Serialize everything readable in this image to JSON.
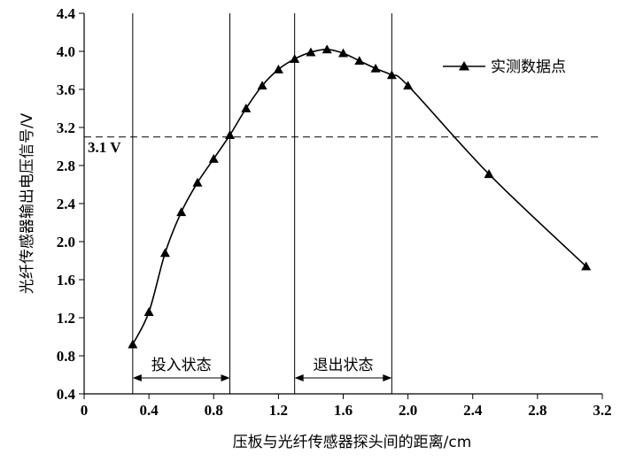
{
  "chart_data": {
    "type": "line",
    "title": "",
    "xlabel": "压板与光纤传感器探头间的距离/cm",
    "ylabel": "光纤传感器输出电压信号/V",
    "xlim": [
      0,
      3.2
    ],
    "ylim": [
      0.4,
      4.4
    ],
    "xticks": [
      "0",
      "0.4",
      "0.8",
      "1.2",
      "1.6",
      "2.0",
      "2.4",
      "2.8",
      "3.2"
    ],
    "yticks": [
      "0.4",
      "0.8",
      "1.2",
      "1.6",
      "2.0",
      "2.4",
      "2.8",
      "3.2",
      "3.6",
      "4.0",
      "4.4"
    ],
    "legend": {
      "label": "实测数据点",
      "position": "top-right",
      "marker": "triangle"
    },
    "grid": false,
    "series": [
      {
        "name": "实测数据点",
        "x": [
          0.3,
          0.4,
          0.5,
          0.6,
          0.7,
          0.8,
          0.9,
          1.0,
          1.1,
          1.2,
          1.3,
          1.4,
          1.5,
          1.6,
          1.7,
          1.8,
          1.9,
          2.0,
          2.5,
          3.1
        ],
        "y": [
          0.92,
          1.26,
          1.88,
          2.31,
          2.62,
          2.87,
          3.12,
          3.4,
          3.64,
          3.81,
          3.92,
          3.99,
          4.02,
          3.98,
          3.9,
          3.82,
          3.75,
          3.64,
          2.71,
          1.74
        ]
      }
    ],
    "reference_line": {
      "axis": "y",
      "value": 3.1,
      "label": "3.1 V",
      "style": "dashed"
    },
    "vertical_lines": [
      0.3,
      0.9,
      1.3,
      1.9
    ],
    "annotations": [
      {
        "text": "投入状态",
        "x_from": 0.3,
        "x_to": 0.9
      },
      {
        "text": "退出状态",
        "x_from": 1.3,
        "x_to": 1.9
      }
    ]
  }
}
